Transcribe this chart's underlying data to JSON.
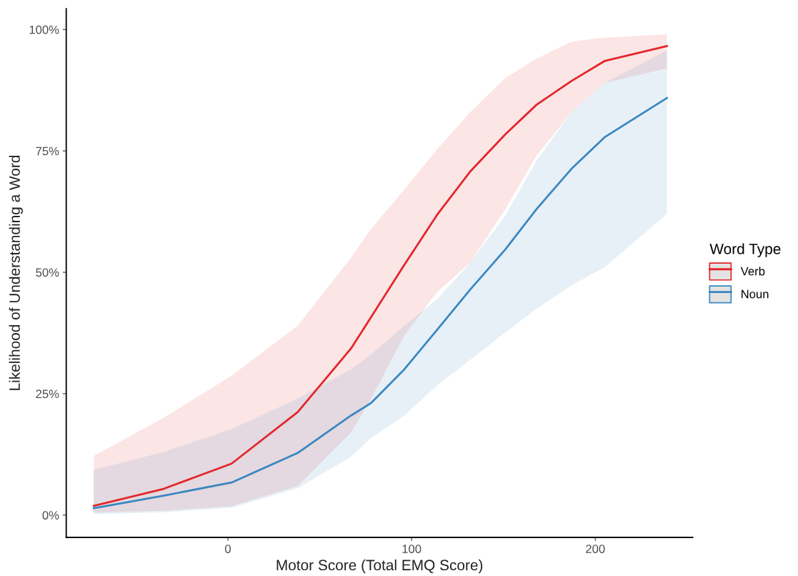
{
  "chart_data": {
    "type": "line",
    "xlabel": "Motor Score (Total EMQ Score)",
    "ylabel": "Likelihood of Understanding a Word",
    "legend_title": "Word Type",
    "x": [
      -73,
      -35,
      2,
      38,
      67,
      78,
      96,
      114,
      132,
      151,
      168,
      187,
      205,
      239
    ],
    "series": [
      {
        "name": "Verb",
        "color": "#e3262b",
        "values": [
          1.9,
          5.4,
          10.6,
          21.2,
          34.3,
          40.8,
          51.5,
          61.9,
          70.8,
          78.4,
          84.5,
          89.4,
          93.5,
          96.6
        ],
        "lower": [
          0.5,
          0.9,
          1.8,
          6,
          17,
          24,
          37,
          46,
          52,
          63,
          74,
          83,
          89,
          92
        ],
        "upper": [
          12.2,
          20,
          28.7,
          39,
          53,
          59,
          67,
          75.4,
          83,
          90,
          94,
          97.5,
          98.3,
          99
        ]
      },
      {
        "name": "Noun",
        "color": "#3a87c0",
        "values": [
          1.4,
          4,
          6.7,
          12.8,
          20.5,
          23.1,
          30,
          38.2,
          46.5,
          54.7,
          63,
          71.3,
          77.8,
          85.9
        ],
        "lower": [
          0.2,
          0.6,
          1.5,
          5.5,
          12,
          15.9,
          20.5,
          26.7,
          32,
          37.6,
          42.5,
          47.3,
          51,
          62
        ],
        "upper": [
          9.3,
          13,
          17.7,
          24,
          30,
          33.1,
          39,
          44.5,
          52,
          61.7,
          73,
          83,
          89,
          95.7
        ]
      }
    ],
    "xlim": [
      -88,
      253
    ],
    "xticks": [
      0,
      100,
      200
    ],
    "ylim": [
      -4.6,
      104.3
    ],
    "yticks": [
      {
        "value": 0,
        "label": "0%"
      },
      {
        "value": 25,
        "label": "25%"
      },
      {
        "value": 50,
        "label": "50%"
      },
      {
        "value": 75,
        "label": "75%"
      },
      {
        "value": 100,
        "label": "100%"
      }
    ],
    "grid": false,
    "legend": "right",
    "marker": "none",
    "line_style": "solid"
  }
}
